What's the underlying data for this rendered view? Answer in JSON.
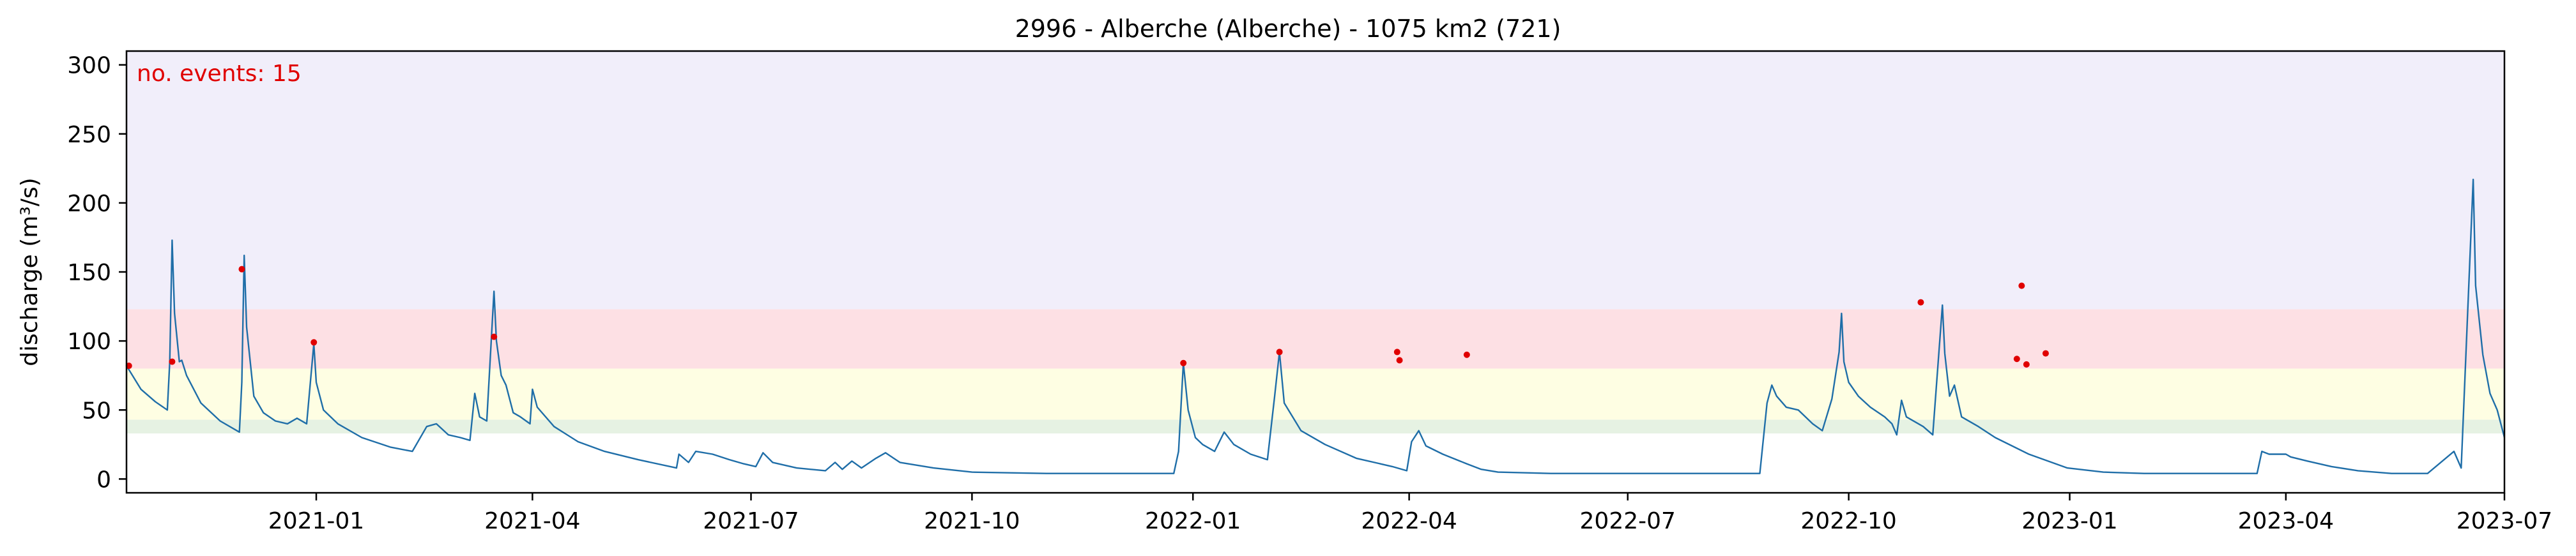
{
  "chart_data": {
    "type": "line",
    "title": "2996 - Alberche (Alberche) - 1075 km2 (721)",
    "xlabel": "",
    "ylabel": "discharge (m³/s)",
    "xlim": [
      "2020-10-14",
      "2023-07-01"
    ],
    "ylim": [
      -10,
      310
    ],
    "annotation": "no. events: 15",
    "annotation_color": "#e00000",
    "grid": false,
    "x_ticks": [
      "2021-01",
      "2021-04",
      "2021-07",
      "2021-10",
      "2022-01",
      "2022-04",
      "2022-07",
      "2022-10",
      "2023-01",
      "2023-04",
      "2023-07"
    ],
    "y_ticks": [
      0,
      50,
      100,
      150,
      200,
      250,
      300
    ],
    "bands": [
      {
        "from": 33,
        "to": 43,
        "color": "#e6f2e3"
      },
      {
        "from": 43,
        "to": 80,
        "color": "#fefee3"
      },
      {
        "from": 80,
        "to": 123,
        "color": "#fde0e4"
      },
      {
        "from": 123,
        "to": 310,
        "color": "#f1eefa"
      }
    ],
    "series": [
      {
        "color": "#1f6ea8",
        "points": [
          [
            "2020-10-14",
            82
          ],
          [
            "2020-10-20",
            65
          ],
          [
            "2020-10-26",
            56
          ],
          [
            "2020-10-31",
            50
          ],
          [
            "2020-11-01",
            85
          ],
          [
            "2020-11-02",
            173
          ],
          [
            "2020-11-03",
            120
          ],
          [
            "2020-11-05",
            85
          ],
          [
            "2020-11-06",
            86
          ],
          [
            "2020-11-08",
            75
          ],
          [
            "2020-11-14",
            55
          ],
          [
            "2020-11-22",
            42
          ],
          [
            "2020-11-30",
            34
          ],
          [
            "2020-12-01",
            70
          ],
          [
            "2020-12-02",
            162
          ],
          [
            "2020-12-03",
            110
          ],
          [
            "2020-12-06",
            60
          ],
          [
            "2020-12-10",
            48
          ],
          [
            "2020-12-15",
            42
          ],
          [
            "2020-12-20",
            40
          ],
          [
            "2020-12-24",
            44
          ],
          [
            "2020-12-28",
            40
          ],
          [
            "2020-12-31",
            98
          ],
          [
            "2021-01-01",
            70
          ],
          [
            "2021-01-04",
            50
          ],
          [
            "2021-01-10",
            40
          ],
          [
            "2021-01-20",
            30
          ],
          [
            "2021-02-01",
            23
          ],
          [
            "2021-02-10",
            20
          ],
          [
            "2021-02-16",
            38
          ],
          [
            "2021-02-20",
            40
          ],
          [
            "2021-02-25",
            32
          ],
          [
            "2021-03-02",
            30
          ],
          [
            "2021-03-06",
            28
          ],
          [
            "2021-03-08",
            62
          ],
          [
            "2021-03-10",
            45
          ],
          [
            "2021-03-13",
            42
          ],
          [
            "2021-03-16",
            136
          ],
          [
            "2021-03-17",
            100
          ],
          [
            "2021-03-19",
            75
          ],
          [
            "2021-03-21",
            68
          ],
          [
            "2021-03-24",
            48
          ],
          [
            "2021-03-27",
            45
          ],
          [
            "2021-03-31",
            40
          ],
          [
            "2021-04-01",
            65
          ],
          [
            "2021-04-03",
            52
          ],
          [
            "2021-04-10",
            38
          ],
          [
            "2021-04-20",
            27
          ],
          [
            "2021-05-01",
            20
          ],
          [
            "2021-05-15",
            14
          ],
          [
            "2021-05-31",
            8
          ],
          [
            "2021-06-01",
            18
          ],
          [
            "2021-06-05",
            12
          ],
          [
            "2021-06-08",
            20
          ],
          [
            "2021-06-15",
            18
          ],
          [
            "2021-06-22",
            14
          ],
          [
            "2021-06-28",
            11
          ],
          [
            "2021-07-03",
            9
          ],
          [
            "2021-07-06",
            19
          ],
          [
            "2021-07-10",
            12
          ],
          [
            "2021-07-20",
            8
          ],
          [
            "2021-08-01",
            6
          ],
          [
            "2021-08-05",
            12
          ],
          [
            "2021-08-08",
            7
          ],
          [
            "2021-08-12",
            13
          ],
          [
            "2021-08-16",
            8
          ],
          [
            "2021-08-22",
            15
          ],
          [
            "2021-08-26",
            19
          ],
          [
            "2021-09-01",
            12
          ],
          [
            "2021-09-15",
            8
          ],
          [
            "2021-10-01",
            5
          ],
          [
            "2021-11-01",
            4
          ],
          [
            "2021-12-01",
            4
          ],
          [
            "2021-12-24",
            4
          ],
          [
            "2021-12-26",
            20
          ],
          [
            "2021-12-28",
            84
          ],
          [
            "2021-12-30",
            50
          ],
          [
            "2022-01-02",
            30
          ],
          [
            "2022-01-05",
            25
          ],
          [
            "2022-01-10",
            20
          ],
          [
            "2022-01-14",
            34
          ],
          [
            "2022-01-18",
            25
          ],
          [
            "2022-01-25",
            18
          ],
          [
            "2022-02-01",
            14
          ],
          [
            "2022-02-04",
            60
          ],
          [
            "2022-02-06",
            92
          ],
          [
            "2022-02-08",
            55
          ],
          [
            "2022-02-15",
            35
          ],
          [
            "2022-02-25",
            25
          ],
          [
            "2022-03-10",
            15
          ],
          [
            "2022-03-25",
            9
          ],
          [
            "2022-03-31",
            6
          ],
          [
            "2022-04-02",
            27
          ],
          [
            "2022-04-05",
            35
          ],
          [
            "2022-04-08",
            24
          ],
          [
            "2022-04-15",
            18
          ],
          [
            "2022-04-25",
            11
          ],
          [
            "2022-05-01",
            7
          ],
          [
            "2022-05-08",
            5
          ],
          [
            "2022-05-30",
            4
          ],
          [
            "2022-06-15",
            4
          ],
          [
            "2022-07-01",
            4
          ],
          [
            "2022-07-20",
            4
          ],
          [
            "2022-08-01",
            4
          ],
          [
            "2022-08-15",
            4
          ],
          [
            "2022-08-25",
            4
          ],
          [
            "2022-08-28",
            55
          ],
          [
            "2022-08-30",
            68
          ],
          [
            "2022-09-01",
            60
          ],
          [
            "2022-09-05",
            52
          ],
          [
            "2022-09-10",
            50
          ],
          [
            "2022-09-16",
            40
          ],
          [
            "2022-09-20",
            35
          ],
          [
            "2022-09-24",
            58
          ],
          [
            "2022-09-27",
            92
          ],
          [
            "2022-09-28",
            120
          ],
          [
            "2022-09-29",
            85
          ],
          [
            "2022-10-01",
            70
          ],
          [
            "2022-10-05",
            60
          ],
          [
            "2022-10-10",
            52
          ],
          [
            "2022-10-16",
            45
          ],
          [
            "2022-10-19",
            40
          ],
          [
            "2022-10-21",
            32
          ],
          [
            "2022-10-23",
            57
          ],
          [
            "2022-10-25",
            45
          ],
          [
            "2022-11-01",
            38
          ],
          [
            "2022-11-05",
            32
          ],
          [
            "2022-11-09",
            126
          ],
          [
            "2022-11-10",
            91
          ],
          [
            "2022-11-12",
            60
          ],
          [
            "2022-11-14",
            68
          ],
          [
            "2022-11-17",
            45
          ],
          [
            "2022-11-24",
            38
          ],
          [
            "2022-12-01",
            30
          ],
          [
            "2022-12-15",
            18
          ],
          [
            "2022-12-31",
            8
          ],
          [
            "2023-01-15",
            5
          ],
          [
            "2023-02-01",
            4
          ],
          [
            "2023-02-28",
            4
          ],
          [
            "2023-03-20",
            4
          ],
          [
            "2023-03-22",
            20
          ],
          [
            "2023-03-25",
            18
          ],
          [
            "2023-04-01",
            18
          ],
          [
            "2023-04-03",
            16
          ],
          [
            "2023-04-10",
            13
          ],
          [
            "2023-04-20",
            9
          ],
          [
            "2023-05-01",
            6
          ],
          [
            "2023-05-15",
            4
          ],
          [
            "2023-05-30",
            4
          ],
          [
            "2023-06-10",
            20
          ],
          [
            "2023-06-13",
            8
          ],
          [
            "2023-06-18",
            217
          ],
          [
            "2023-06-19",
            140
          ],
          [
            "2023-06-22",
            90
          ],
          [
            "2023-06-25",
            62
          ],
          [
            "2023-06-28",
            50
          ],
          [
            "2023-07-01",
            30
          ]
        ]
      }
    ],
    "events": [
      [
        "2020-10-15",
        82
      ],
      [
        "2020-11-02",
        85
      ],
      [
        "2020-12-01",
        152
      ],
      [
        "2020-12-31",
        99
      ],
      [
        "2021-03-16",
        103
      ],
      [
        "2021-12-28",
        84
      ],
      [
        "2022-02-06",
        92
      ],
      [
        "2022-03-27",
        92
      ],
      [
        "2022-03-28",
        86
      ],
      [
        "2022-04-25",
        90
      ],
      [
        "2022-10-31",
        128
      ],
      [
        "2022-12-10",
        87
      ],
      [
        "2022-12-12",
        140
      ],
      [
        "2022-12-14",
        83
      ],
      [
        "2022-12-22",
        91
      ]
    ],
    "events_color": "#e00000"
  }
}
